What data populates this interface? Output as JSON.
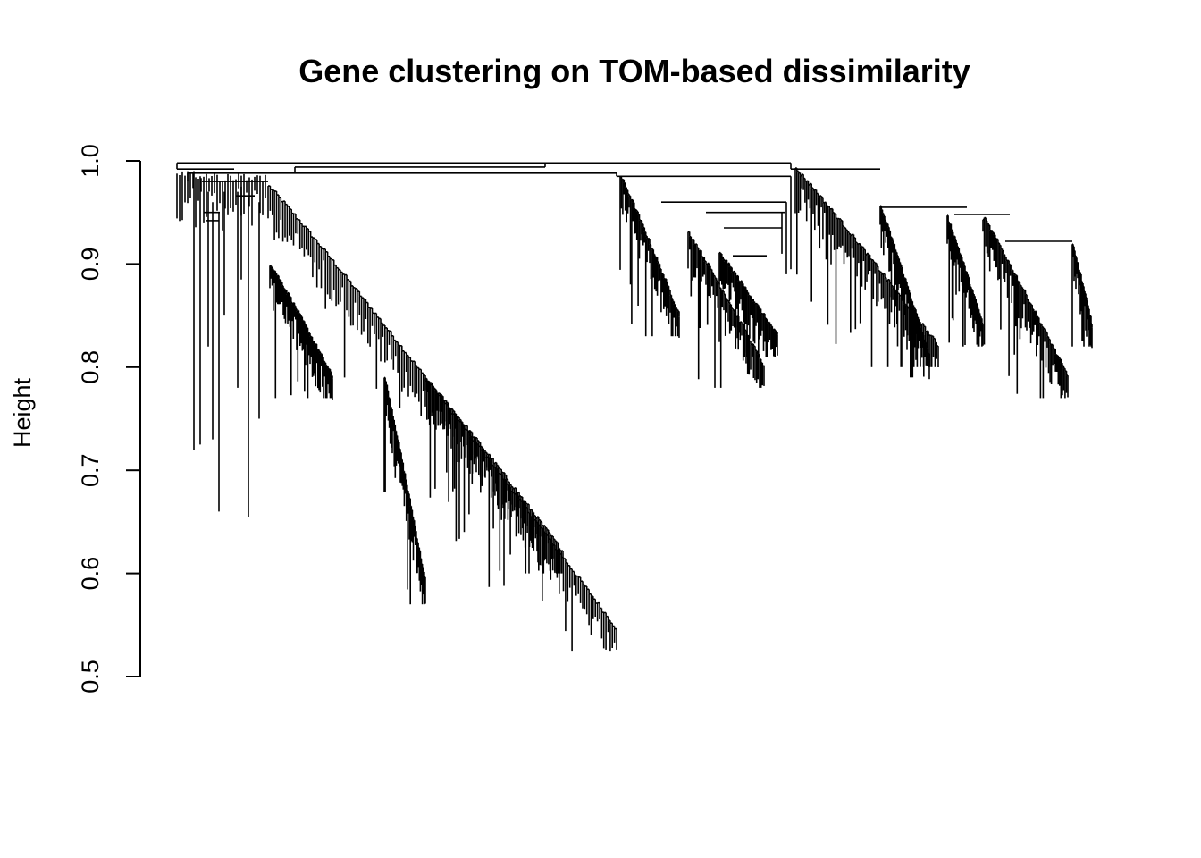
{
  "chart_data": {
    "type": "dendrogram",
    "title": "Gene clustering on TOM-based dissimilarity",
    "xlabel": "",
    "ylabel": "Height",
    "ylim": [
      0.5,
      1.0
    ],
    "y_ticks": [
      "0.5",
      "0.6",
      "0.7",
      "0.8",
      "0.9",
      "1.0"
    ],
    "grid": false,
    "line_color": "#000000",
    "leaf_labels_shown": false,
    "major_clusters": [
      {
        "root_height": 0.988,
        "min_leaf_height": 0.535
      },
      {
        "root_height": 0.985,
        "min_leaf_height": 0.78
      },
      {
        "root_height": 0.994,
        "min_leaf_height": 0.785
      }
    ],
    "top_merge_height": 0.998
  }
}
